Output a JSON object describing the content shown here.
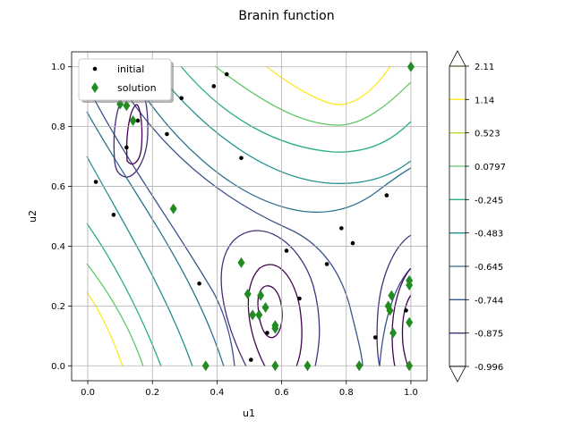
{
  "chart_data": {
    "type": "scatter",
    "title": "Branin function",
    "xlabel": "u1",
    "ylabel": "u2",
    "xlim": [
      -0.05,
      1.05
    ],
    "ylim": [
      -0.05,
      1.05
    ],
    "xticks": [
      "0.0",
      "0.2",
      "0.4",
      "0.6",
      "0.8",
      "1.0"
    ],
    "yticks": [
      "0.0",
      "0.2",
      "0.4",
      "0.6",
      "0.8",
      "1.0"
    ],
    "grid": true,
    "legend_position": "top-left",
    "contour_levels": [
      -0.996,
      -0.875,
      -0.744,
      -0.645,
      -0.483,
      -0.245,
      0.0797,
      0.523,
      1.14,
      2.11
    ],
    "colorbar_labels": [
      "-0.996",
      "-0.875",
      "-0.744",
      "-0.645",
      "-0.483",
      "-0.245",
      "0.0797",
      "0.523",
      "1.14",
      "2.11"
    ],
    "colorbar_colors": [
      "#440154",
      "#472d7b",
      "#3b528b",
      "#2c728e",
      "#21918c",
      "#28ae80",
      "#5ec962",
      "#addc30",
      "#fde725"
    ],
    "colors": {
      "initial": "#000000",
      "solution": "#228b22"
    },
    "series": [
      {
        "name": "initial",
        "marker": "dot",
        "points": [
          [
            0.43,
            0.975
          ],
          [
            0.39,
            0.935
          ],
          [
            0.29,
            0.895
          ],
          [
            0.155,
            0.82
          ],
          [
            0.245,
            0.775
          ],
          [
            0.12,
            0.73
          ],
          [
            0.475,
            0.695
          ],
          [
            0.025,
            0.615
          ],
          [
            0.08,
            0.505
          ],
          [
            0.785,
            0.46
          ],
          [
            0.82,
            0.41
          ],
          [
            0.615,
            0.385
          ],
          [
            0.74,
            0.34
          ],
          [
            0.925,
            0.57
          ],
          [
            0.345,
            0.275
          ],
          [
            0.655,
            0.225
          ],
          [
            0.985,
            0.185
          ],
          [
            0.555,
            0.11
          ],
          [
            0.89,
            0.095
          ],
          [
            0.505,
            0.02
          ]
        ]
      },
      {
        "name": "solution",
        "marker": "diamond",
        "points": [
          [
            0.1,
            0.875
          ],
          [
            0.12,
            0.87
          ],
          [
            0.14,
            0.82
          ],
          [
            0.265,
            0.525
          ],
          [
            1.0,
            1.0
          ],
          [
            0.475,
            0.345
          ],
          [
            0.495,
            0.24
          ],
          [
            0.535,
            0.235
          ],
          [
            0.55,
            0.195
          ],
          [
            0.51,
            0.17
          ],
          [
            0.53,
            0.17
          ],
          [
            0.58,
            0.135
          ],
          [
            0.58,
            0.125
          ],
          [
            0.365,
            0.0
          ],
          [
            0.58,
            0.0
          ],
          [
            0.68,
            0.0
          ],
          [
            0.84,
            0.0
          ],
          [
            0.93,
            0.2
          ],
          [
            0.935,
            0.185
          ],
          [
            0.94,
            0.235
          ],
          [
            0.945,
            0.11
          ],
          [
            0.995,
            0.285
          ],
          [
            0.995,
            0.27
          ],
          [
            0.995,
            0.145
          ],
          [
            0.995,
            0.0
          ]
        ]
      }
    ]
  }
}
